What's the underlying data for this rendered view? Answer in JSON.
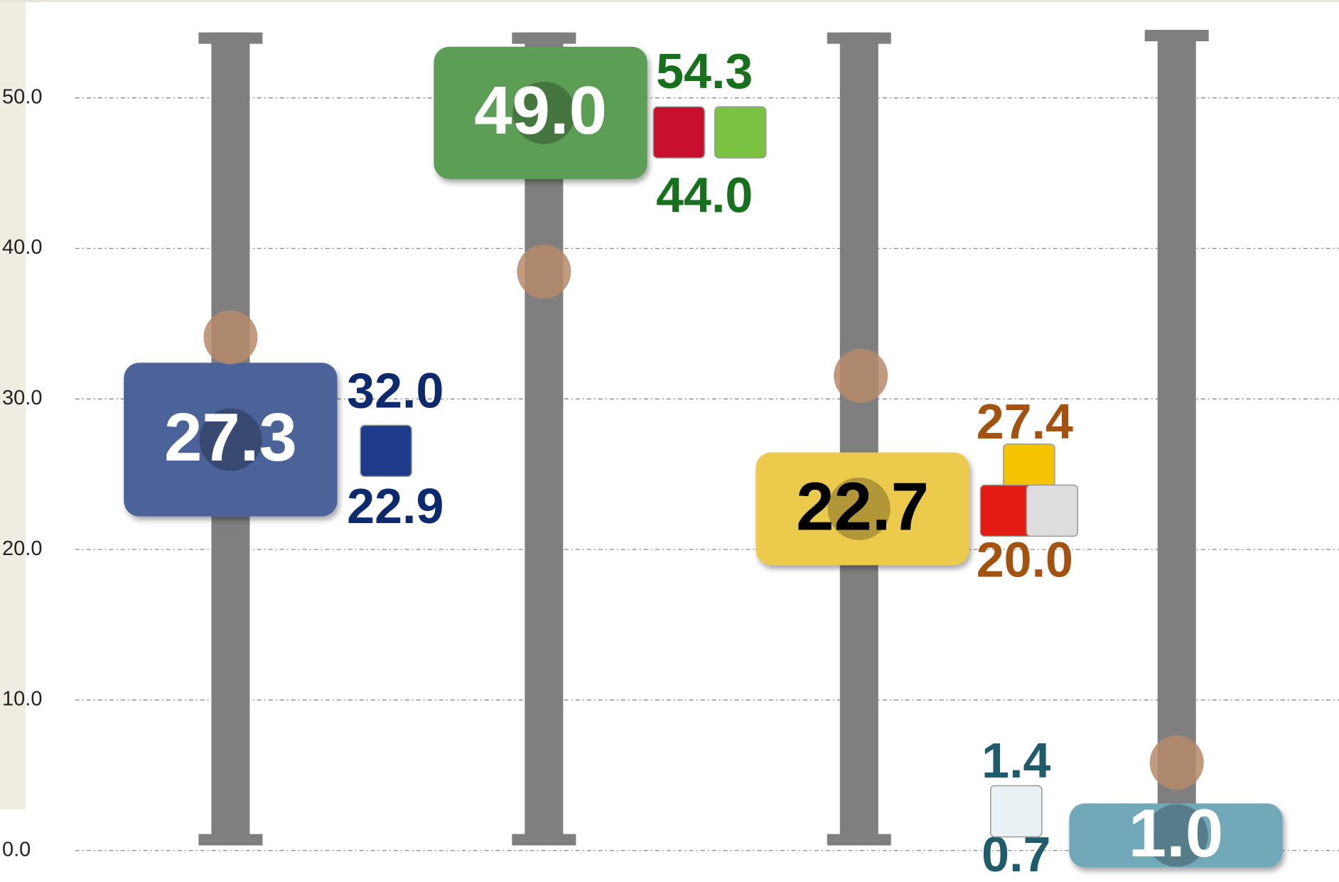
{
  "chart_data": {
    "type": "rangebox",
    "categories": [
      null,
      null,
      null,
      null
    ],
    "values": [
      27.3,
      49,
      22.7,
      1
    ],
    "value_labels": [
      "27.3",
      "49.0",
      "22.7",
      "1.0"
    ],
    "high": [
      32,
      54.3,
      27.4,
      1.4
    ],
    "high_labels": [
      "32.0",
      "54.3",
      "27.4",
      "1.4"
    ],
    "low": [
      22.9,
      44,
      20,
      0.7
    ],
    "low_labels": [
      "22.9",
      "44.0",
      "20.0",
      "0.7"
    ],
    "colors": [
      "#4c6399",
      "#5b9e57",
      "#ecca4c",
      "#72a9b8"
    ],
    "value_text_colors": [
      "#ffffff",
      "#ffffff",
      "#000000",
      "#ffffff"
    ],
    "range_text_colors": [
      "#0d2a6e",
      "#17701b",
      "#a3520f",
      "#1f5c6b"
    ],
    "ylim": [
      0,
      56.5
    ],
    "yticks": [
      {
        "value": 0,
        "label": "0.0"
      },
      {
        "value": 10,
        "label": "10.0"
      },
      {
        "value": 20,
        "label": "20.0"
      },
      {
        "value": 30,
        "label": "30.0"
      },
      {
        "value": 40,
        "label": "40.0"
      },
      {
        "value": 50,
        "label": "50.0"
      }
    ],
    "grid": true
  }
}
